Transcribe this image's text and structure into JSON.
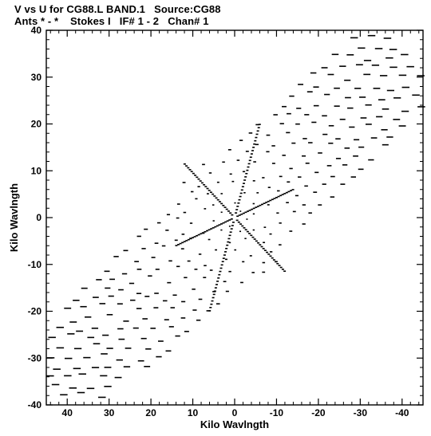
{
  "header": {
    "line1": "V vs U for CG88.L BAND.1   Source:CG88",
    "line2": "Ants * - *    Stokes I   IF# 1 - 2   Chan# 1"
  },
  "chart_data": {
    "type": "scatter",
    "title": "V vs U for CG88.L BAND.1   Source:CG88",
    "subtitle": "Ants * - *    Stokes I   IF# 1 - 2   Chan# 1",
    "xlabel": "Kilo Wavlngth",
    "ylabel": "Kilo Wavlngth",
    "xlim": [
      45,
      -45
    ],
    "ylim": [
      -40,
      40
    ],
    "x_reversed": true,
    "xticks": [
      40,
      30,
      20,
      10,
      0,
      -10,
      -20,
      -30,
      -40
    ],
    "xtick_labels": [
      "40",
      "30",
      "20",
      "10",
      "0",
      "-10",
      "-20",
      "-30",
      "-40"
    ],
    "yticks": [
      40,
      30,
      20,
      10,
      0,
      -10,
      -20,
      -30,
      -40
    ],
    "ytick_labels": [
      "40",
      "30",
      "20",
      "10",
      "0",
      "-10",
      "-20",
      "-30",
      "-40"
    ],
    "grid": false,
    "legend": "none",
    "marker": "short horizontal dash",
    "color": "#000000",
    "coverage": {
      "description_note_none": "",
      "band_axis_angle_deg": 40,
      "band_half_width": 14,
      "max_radius": 56,
      "radial_arms": [
        {
          "u_start": 0,
          "v_start": 0,
          "u_end": 12,
          "v_end": 11.5
        },
        {
          "u_start": 0,
          "v_start": 0,
          "u_end": -12,
          "v_end": -11.5
        },
        {
          "u_start": 0,
          "v_start": 0,
          "u_end": -6,
          "v_end": 20
        },
        {
          "u_start": 0,
          "v_start": 0,
          "u_end": 6,
          "v_end": -20
        },
        {
          "u_start": 0,
          "v_start": 0,
          "u_end": -14,
          "v_end": 6
        },
        {
          "u_start": 0,
          "v_start": 0,
          "u_end": 14,
          "v_end": -6
        }
      ]
    }
  }
}
